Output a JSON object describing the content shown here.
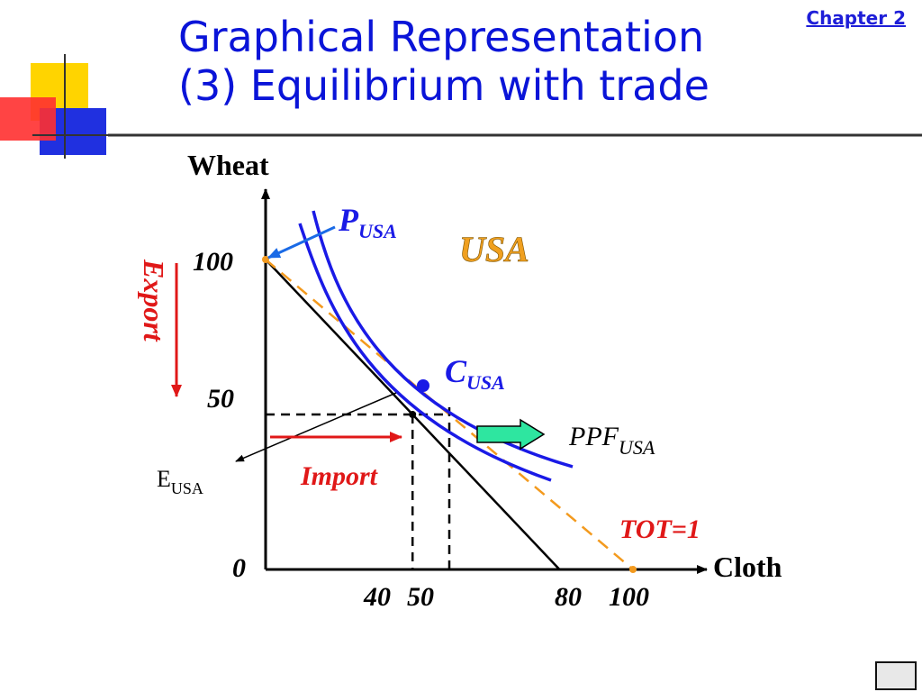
{
  "slide": {
    "title_line1": "Graphical Representation",
    "title_line2": "(3) Equilibrium with trade",
    "chapter_link": "Chapter 2"
  },
  "labels": {
    "y_axis": "Wheat",
    "x_axis": "Cloth",
    "origin": "0",
    "y_100": "100",
    "y_50": "50",
    "x_40": "40",
    "x_50": "50",
    "x_80": "80",
    "x_100": "100",
    "country": "USA",
    "production_point": "P",
    "production_point_sub": "USA",
    "consumption_point": "C",
    "consumption_point_sub": "USA",
    "equilibrium_point": "E",
    "equilibrium_point_sub": "USA",
    "ppf": "PPF",
    "ppf_sub": "USA",
    "tot": "TOT=1",
    "export": "Export",
    "import": "Import"
  },
  "colors": {
    "title": "#0a14d8",
    "curves": "#1a1ae6",
    "tot_line": "#f39a1e",
    "country_label": "#f0a020",
    "trade_arrows": "#e01818",
    "fat_arrow": "#2ee6a0"
  },
  "chart_data": {
    "type": "line",
    "axes": {
      "x_range": [
        0,
        100
      ],
      "y_range": [
        0,
        100
      ]
    },
    "ppf": {
      "x": [
        0,
        80
      ],
      "y": [
        100,
        0
      ]
    },
    "tot_line": {
      "x": [
        0,
        100
      ],
      "y": [
        100,
        0
      ]
    },
    "production_point": {
      "x": 0,
      "y": 100
    },
    "consumption_point": {
      "x": 50,
      "y": 50
    },
    "equilibrium_point": {
      "x": 40,
      "y": 50
    },
    "dashed_guides_x": [
      40,
      50
    ],
    "dashed_guides_y": [
      50
    ]
  }
}
